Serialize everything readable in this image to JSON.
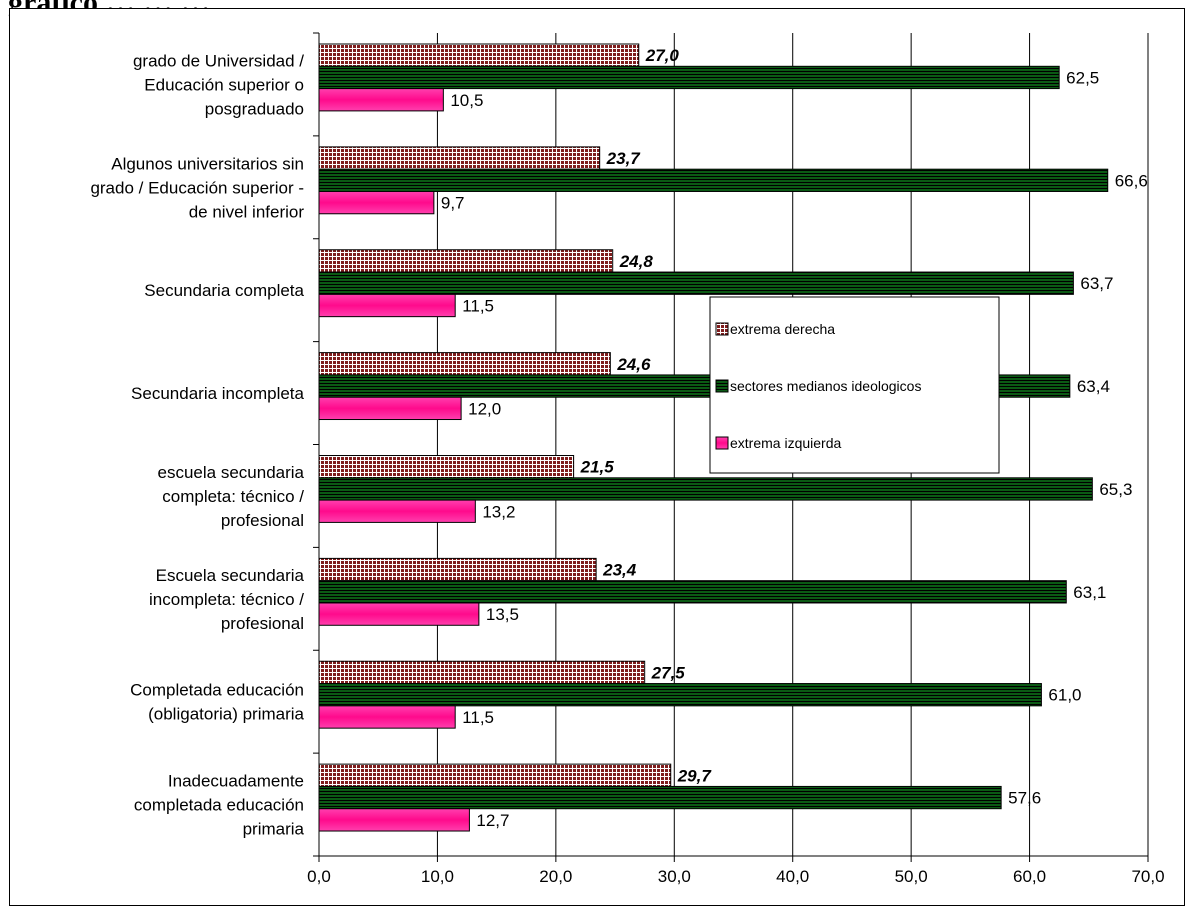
{
  "page": {
    "title": "gráfico … … …"
  },
  "chart_data": {
    "type": "bar",
    "orientation": "horizontal",
    "title": "",
    "xlabel": "",
    "ylabel": "",
    "xlim": [
      0,
      70
    ],
    "x_ticks": [
      "0,0",
      "10,0",
      "20,0",
      "30,0",
      "40,0",
      "50,0",
      "60,0",
      "70,0"
    ],
    "grid": "vertical",
    "legend_position": "center-right",
    "categories": [
      [
        "grado de Universidad  /",
        "Educación superior o",
        "posgraduado"
      ],
      [
        "Algunos universitarios sin",
        "grado / Educación superior -",
        "de nivel inferior"
      ],
      [
        "Secundaria completa"
      ],
      [
        "Secundaria incompleta"
      ],
      [
        "escuela secundaria",
        "completa: técnico /",
        "profesional"
      ],
      [
        "Escuela secundaria",
        "incompleta: técnico /",
        "profesional"
      ],
      [
        "Completada  educación",
        "(obligatoria)  primaria"
      ],
      [
        "Inadecuadamente",
        "completada educación",
        "primaria"
      ]
    ],
    "series": [
      {
        "name": "extrema derecha",
        "color": "#7f1d1d",
        "pattern": "grid",
        "label_style": "bold-italic",
        "values": [
          27.0,
          23.7,
          24.8,
          24.6,
          21.5,
          23.4,
          27.5,
          29.7
        ],
        "labels": [
          "27,0",
          "23,7",
          "24,8",
          "24,6",
          "21,5",
          "23,4",
          "27,5",
          "29,7"
        ]
      },
      {
        "name": "sectores medianos ideologicos",
        "color": "#0b5a14",
        "pattern": "horizontal-stripes",
        "label_style": "normal",
        "values": [
          62.5,
          66.6,
          63.7,
          63.4,
          65.3,
          63.1,
          61.0,
          57.6
        ],
        "labels": [
          "62,5",
          "66,6",
          "63,7",
          "63,4",
          "65,3",
          "63,1",
          "61,0",
          "57,6"
        ]
      },
      {
        "name": "extrema izquierda",
        "color": "#ff1493",
        "pattern": "gradient",
        "label_style": "normal",
        "values": [
          10.5,
          9.7,
          11.5,
          12.0,
          13.2,
          13.5,
          11.5,
          12.7
        ],
        "labels": [
          "10,5",
          "9,7",
          "11,5",
          "12,0",
          "13,2",
          "13,5",
          "11,5",
          "12,7"
        ]
      }
    ]
  }
}
